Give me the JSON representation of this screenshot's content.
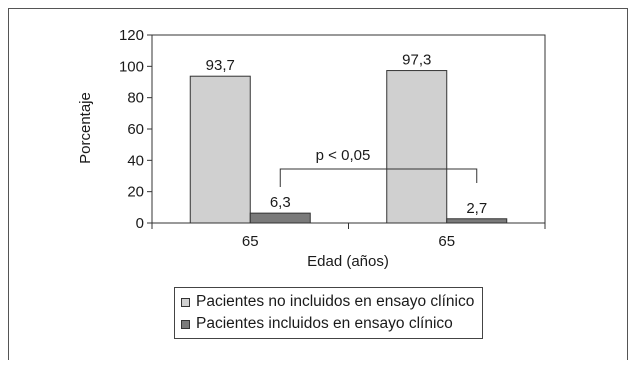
{
  "chart_data": {
    "type": "bar",
    "categories": [
      "65",
      "65"
    ],
    "series": [
      {
        "name": "Pacientes no incluidos en ensayo clínico",
        "values": [
          93.7,
          97.3
        ],
        "labels": [
          "93,7",
          "97,3"
        ],
        "color": "#d0d0d0"
      },
      {
        "name": "Pacientes incluidos en ensayo clínico",
        "values": [
          6.3,
          2.7
        ],
        "labels": [
          "6,3",
          "2,7"
        ],
        "color": "#7a7a7a"
      }
    ],
    "xlabel": "Edad (años)",
    "ylabel": "Porcentaje",
    "ylim": [
      0,
      120
    ],
    "yticks": [
      "0",
      "20",
      "40",
      "60",
      "80",
      "100",
      "120"
    ],
    "annotation": "p < 0,05",
    "legend_position": "bottom",
    "grid": false
  }
}
